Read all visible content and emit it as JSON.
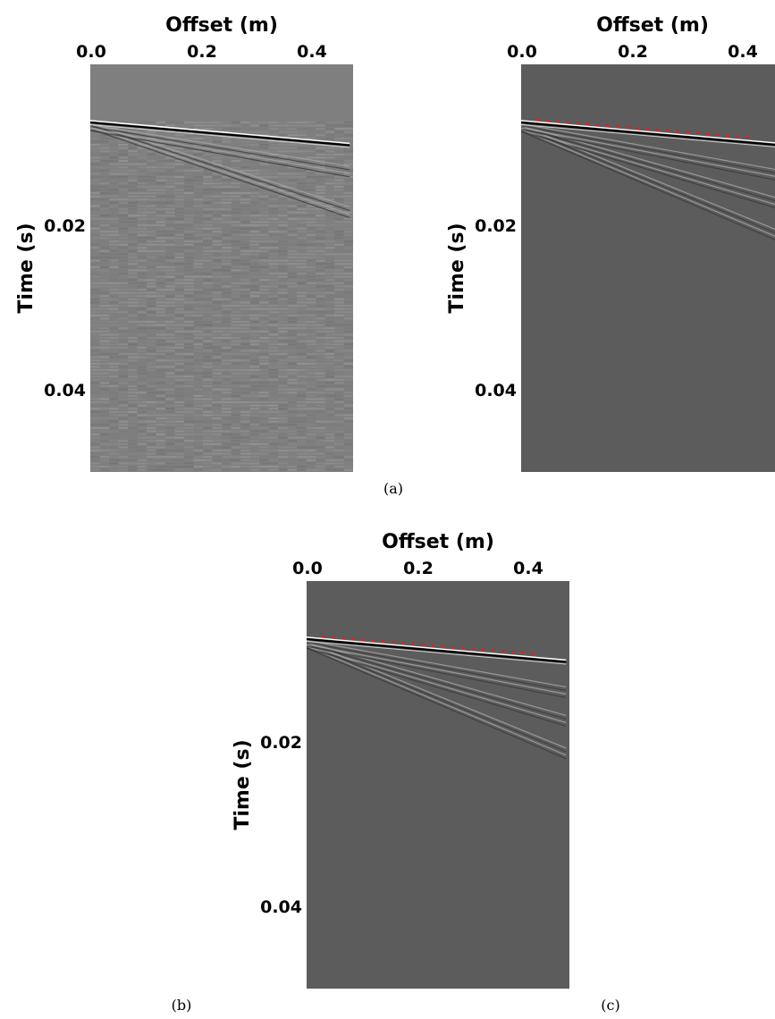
{
  "chart_data": [
    {
      "type": "heatmap",
      "panel": "a",
      "xlabel": "Offset (m)",
      "ylabel": "Time (s)",
      "x_ticks": [
        "0.0",
        "0.2",
        "0.4"
      ],
      "y_ticks": [
        "0.02",
        "0.04"
      ],
      "xlim": [
        0.0,
        0.47
      ],
      "ylim": [
        0.0,
        0.05
      ],
      "x_axis_position": "top",
      "colormap": "gray",
      "background": "#7f7f7f",
      "noisy": true,
      "first_break": {
        "x": [
          0.0,
          0.47
        ],
        "y": [
          0.007,
          0.0098
        ]
      },
      "events": [
        {
          "x": [
            0.0,
            0.47
          ],
          "y": [
            0.0072,
            0.0175
          ]
        },
        {
          "x": [
            0.0,
            0.47
          ],
          "y": [
            0.0074,
            0.0125
          ]
        }
      ],
      "picks": null
    },
    {
      "type": "heatmap",
      "panel": "b",
      "xlabel": "Offset (m)",
      "ylabel": "Time (s)",
      "x_ticks": [
        "0.0",
        "0.2",
        "0.4"
      ],
      "y_ticks": [
        "0.02",
        "0.04"
      ],
      "xlim": [
        0.0,
        0.47
      ],
      "ylim": [
        0.0,
        0.05
      ],
      "x_axis_position": "top",
      "colormap": "gray",
      "background": "#5c5c5c",
      "noisy": false,
      "first_break": {
        "x": [
          0.0,
          0.47
        ],
        "y": [
          0.007,
          0.0098
        ]
      },
      "events": [
        {
          "x": [
            0.0,
            0.47
          ],
          "y": [
            0.0075,
            0.0205
          ]
        },
        {
          "x": [
            0.0,
            0.47
          ],
          "y": [
            0.0075,
            0.0165
          ]
        },
        {
          "x": [
            0.0,
            0.47
          ],
          "y": [
            0.0073,
            0.013
          ]
        }
      ],
      "picks": {
        "color": "#e02020",
        "x": [
          0.03,
          0.41
        ],
        "y": [
          0.0068,
          0.0089
        ],
        "count": 22
      }
    },
    {
      "type": "heatmap",
      "panel": "c",
      "xlabel": "Offset (m)",
      "ylabel": "Time (s)",
      "x_ticks": [
        "0.0",
        "0.2",
        "0.4"
      ],
      "y_ticks": [
        "0.02",
        "0.04"
      ],
      "xlim": [
        0.0,
        0.47
      ],
      "ylim": [
        0.0,
        0.05
      ],
      "x_axis_position": "top",
      "colormap": "gray",
      "background": "#5c5c5c",
      "noisy": false,
      "first_break": {
        "x": [
          0.0,
          0.47
        ],
        "y": [
          0.007,
          0.0098
        ]
      },
      "events": [
        {
          "x": [
            0.0,
            0.47
          ],
          "y": [
            0.0075,
            0.0205
          ]
        },
        {
          "x": [
            0.0,
            0.47
          ],
          "y": [
            0.0075,
            0.0165
          ]
        },
        {
          "x": [
            0.0,
            0.47
          ],
          "y": [
            0.0073,
            0.013
          ]
        }
      ],
      "picks": {
        "color": "#e02020",
        "x": [
          0.03,
          0.41
        ],
        "y": [
          0.0068,
          0.0089
        ],
        "count": 22
      }
    }
  ],
  "captions": [
    "(a)",
    "(b)",
    "(c)"
  ]
}
